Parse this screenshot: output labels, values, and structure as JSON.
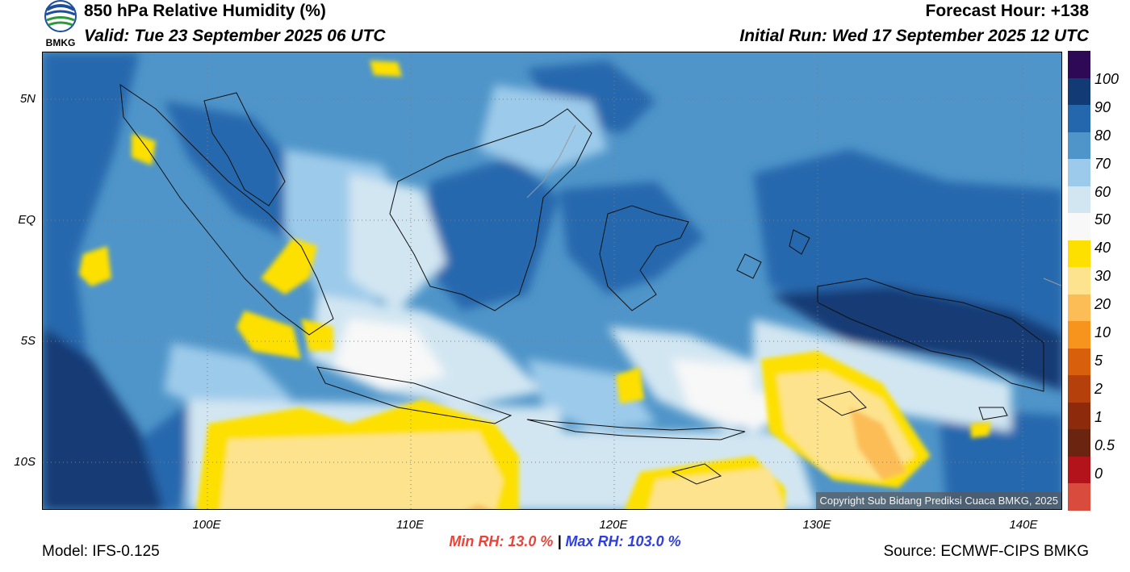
{
  "header": {
    "title": "850 hPa Relative Humidity (%)",
    "valid": "Valid: Tue 23 September 2025 06 UTC",
    "forecast_hour": "Forecast Hour: +138",
    "initial_run": "Initial Run: Wed 17 September 2025 12 UTC",
    "logo_text": "BMKG"
  },
  "map": {
    "lat_ticks": [
      "5N",
      "EQ",
      "5S",
      "10S"
    ],
    "lon_ticks": [
      "100E",
      "110E",
      "120E",
      "130E",
      "140E"
    ],
    "copyright": "Copyright Sub Bidang Prediksi Cuaca BMKG, 2025"
  },
  "colorbar": {
    "labels": [
      "100",
      "90",
      "80",
      "70",
      "60",
      "50",
      "40",
      "30",
      "20",
      "10",
      "5",
      "2",
      "1",
      "0.5",
      "0"
    ],
    "colors": [
      "#d94b3d",
      "#b3141c",
      "#6a2410",
      "#8e2a0c",
      "#b5400c",
      "#d8600d",
      "#f7941d",
      "#fcbd56",
      "#fde38d",
      "#fde000",
      "#f8f8f8",
      "#d2e6f2",
      "#9ccaea",
      "#4f95c9",
      "#2567ad",
      "#123b75",
      "#2e0a56"
    ]
  },
  "footer": {
    "model": "Model: IFS-0.125",
    "min_label": "Min RH:",
    "min_value": "13.0 %",
    "separator": "|",
    "max_label": "Max RH:",
    "max_value": "103.0 %",
    "source": "Source: ECMWF-CIPS BMKG"
  }
}
